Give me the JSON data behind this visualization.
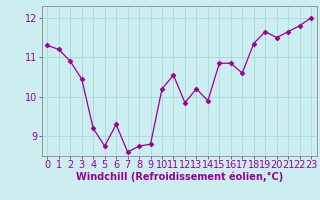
{
  "x": [
    0,
    1,
    2,
    3,
    4,
    5,
    6,
    7,
    8,
    9,
    10,
    11,
    12,
    13,
    14,
    15,
    16,
    17,
    18,
    19,
    20,
    21,
    22,
    23
  ],
  "y": [
    11.3,
    11.2,
    10.9,
    10.45,
    9.2,
    8.75,
    9.3,
    8.6,
    8.75,
    8.8,
    10.2,
    10.55,
    9.85,
    10.2,
    9.9,
    10.85,
    10.85,
    10.6,
    11.35,
    11.65,
    11.5,
    11.65,
    11.8,
    12.0
  ],
  "line_color": "#990099",
  "marker": "D",
  "marker_size": 2.5,
  "bg_color": "#cceef0",
  "grid_color": "#aadddd",
  "xlabel": "Windchill (Refroidissement éolien,°C)",
  "xlabel_color": "#990099",
  "tick_color": "#990099",
  "ylim": [
    8.5,
    12.3
  ],
  "xlim": [
    -0.5,
    23.5
  ],
  "yticks": [
    9,
    10,
    11,
    12
  ],
  "xticks": [
    0,
    1,
    2,
    3,
    4,
    5,
    6,
    7,
    8,
    9,
    10,
    11,
    12,
    13,
    14,
    15,
    16,
    17,
    18,
    19,
    20,
    21,
    22,
    23
  ],
  "spine_color": "#888888",
  "tick_fontsize": 7,
  "xlabel_fontsize": 7
}
